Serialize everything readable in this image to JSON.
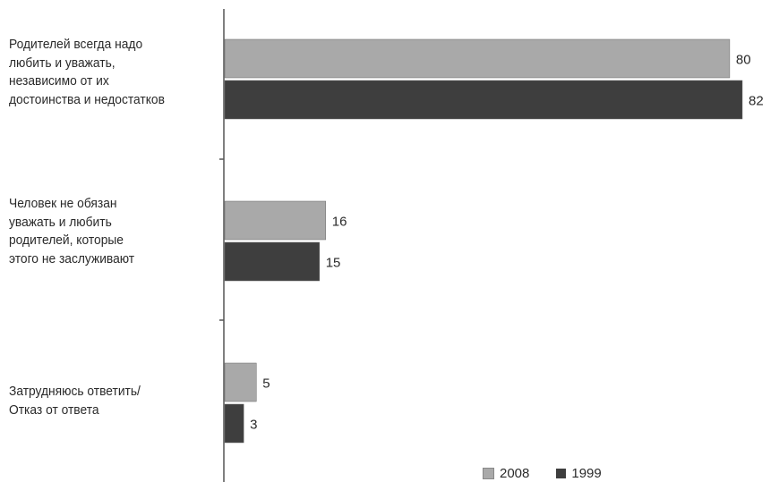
{
  "chart_data": {
    "type": "bar",
    "orientation": "horizontal",
    "categories": [
      "Родителей всегда надо\nлюбить и уважать,\nнезависимо от их\nдостоинства и недостатков",
      "Человек не обязан\nуважать и любить\nродителей, которые\nэтого не заслуживают",
      "Затрудняюсь ответить/\nОтказ от ответа"
    ],
    "series": [
      {
        "name": "2008",
        "values": [
          80,
          16,
          5
        ],
        "color": "#a9a9a9"
      },
      {
        "name": "1999",
        "values": [
          82,
          15,
          3
        ],
        "color": "#3e3e3e"
      }
    ],
    "xlim": [
      0,
      82
    ],
    "grid": false,
    "legend_position": "bottom-right",
    "title": "",
    "xlabel": "",
    "ylabel": ""
  }
}
